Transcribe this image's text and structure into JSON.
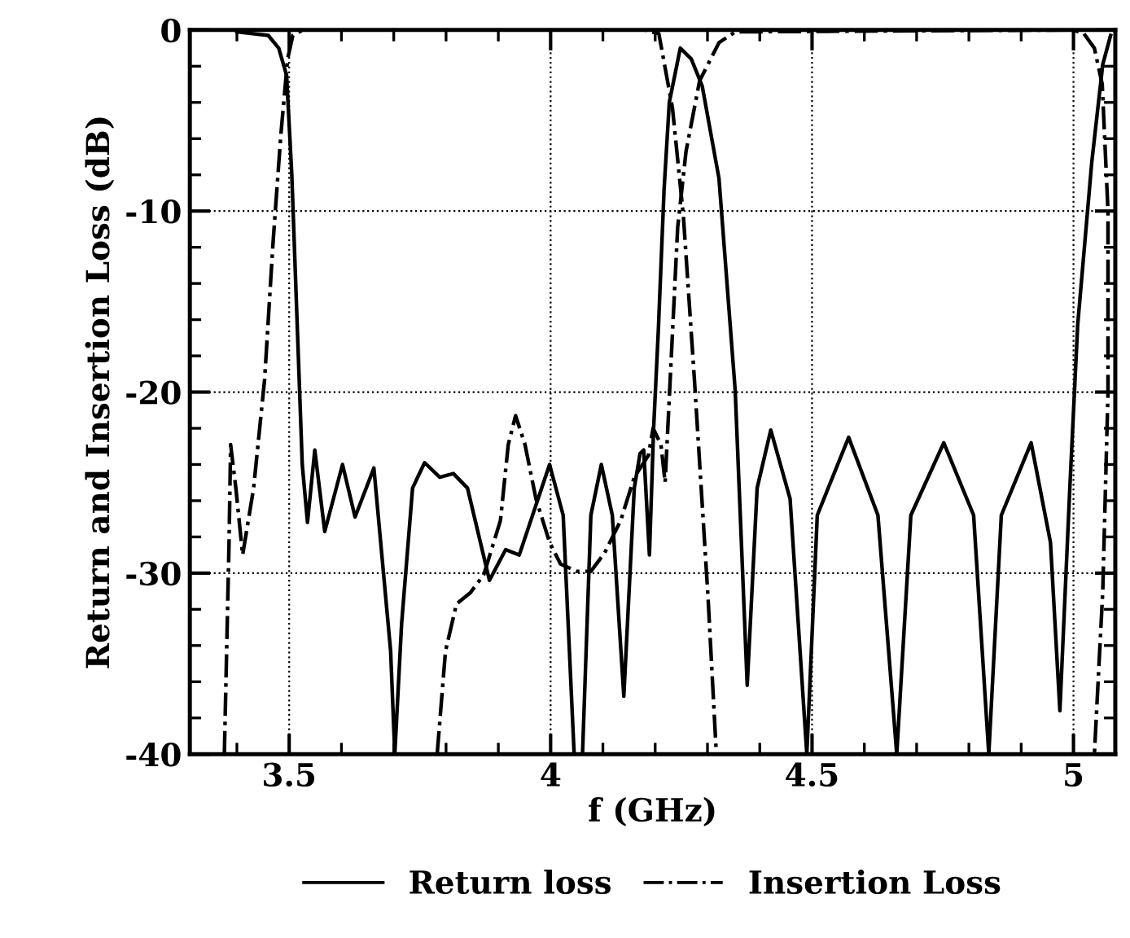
{
  "chart_data": {
    "type": "line",
    "xlabel": "f (GHz)",
    "ylabel": "Return and Insertion Loss (dB)",
    "xlim": [
      3.31,
      5.08
    ],
    "ylim": [
      -40,
      0
    ],
    "xticks": [
      3.5,
      4,
      4.5,
      5
    ],
    "yticks": [
      0,
      -10,
      -20,
      -30,
      -40
    ],
    "grid": true,
    "legend": "bottom",
    "marker": "none",
    "series": [
      {
        "name": "Return loss",
        "color": "#000000",
        "line_style": "solid",
        "x": [
          3.4,
          3.46,
          3.48,
          3.495,
          3.505,
          3.515,
          3.525,
          3.535,
          3.549,
          3.568,
          3.602,
          3.626,
          3.662,
          3.694,
          3.702,
          3.715,
          3.736,
          3.759,
          3.788,
          3.814,
          3.841,
          3.883,
          3.914,
          3.94,
          3.998,
          4.024,
          4.045,
          4.061,
          4.077,
          4.097,
          4.118,
          4.14,
          4.16,
          4.171,
          4.178,
          4.189,
          4.197,
          4.206,
          4.217,
          4.227,
          4.248,
          4.269,
          4.29,
          4.322,
          4.353,
          4.376,
          4.395,
          4.421,
          4.458,
          4.49,
          4.51,
          4.57,
          4.626,
          4.662,
          4.689,
          4.752,
          4.809,
          4.838,
          4.862,
          4.919,
          4.956,
          4.974,
          4.993,
          5.008,
          5.035,
          5.056,
          5.071
        ],
        "values": [
          -0.1,
          -0.3,
          -1,
          -2.5,
          -8,
          -16,
          -24,
          -27.2,
          -23.2,
          -27.7,
          -24.0,
          -26.9,
          -24.2,
          -34.3,
          -40,
          -32.8,
          -25.3,
          -23.9,
          -24.7,
          -24.5,
          -25.3,
          -30.4,
          -28.7,
          -29.0,
          -24.0,
          -26.8,
          -40,
          -40,
          -26.8,
          -24.0,
          -26.8,
          -36.8,
          -25.3,
          -23.4,
          -23.2,
          -29.0,
          -22.0,
          -16.6,
          -8.8,
          -4.0,
          -1.0,
          -1.6,
          -3.1,
          -8.2,
          -19.9,
          -36.2,
          -25.3,
          -22.1,
          -25.9,
          -40,
          -26.8,
          -22.5,
          -26.8,
          -40,
          -26.8,
          -22.8,
          -26.8,
          -40,
          -26.8,
          -22.8,
          -28.3,
          -37.6,
          -25.3,
          -16.3,
          -7.3,
          -1.9,
          -0.3
        ]
      },
      {
        "name": "Insertion Loss",
        "color": "#000000",
        "line_style": "dashdot",
        "x": [
          3.376,
          3.385,
          3.388,
          3.398,
          3.411,
          3.432,
          3.453,
          3.469,
          3.484,
          3.497,
          3.507,
          3.526,
          4.18,
          4.207,
          4.233,
          4.254,
          4.275,
          4.301,
          4.317
        ],
        "values": [
          -40,
          -28.3,
          -22.9,
          -25.3,
          -29.0,
          -25.3,
          -19.3,
          -11.8,
          -5.8,
          -1.6,
          -0.3,
          0,
          0,
          -0.2,
          -4.3,
          -10.3,
          -19.3,
          -31.3,
          -40
        ]
      },
      {
        "color": "#000000",
        "line_style": "dashdot",
        "x": [
          3.783,
          3.799,
          3.82,
          3.846,
          3.872,
          3.904,
          3.919,
          3.933,
          3.951,
          3.972,
          3.998,
          4.019,
          4.05,
          4.077,
          4.103,
          4.134,
          4.16,
          4.187,
          4.196,
          4.211,
          4.219,
          4.243,
          4.259,
          4.285,
          4.322,
          4.353,
          5.0,
          5.02,
          5.04,
          5.055,
          5.066,
          5.066,
          5.056,
          5.04
        ],
        "values": [
          -40,
          -34.3,
          -31.7,
          -31.1,
          -30.1,
          -27.1,
          -22.9,
          -21.3,
          -22.9,
          -25.9,
          -28.3,
          -29.5,
          -29.9,
          -29.9,
          -28.9,
          -27.1,
          -24.7,
          -23.5,
          -22.0,
          -22.9,
          -25.0,
          -10.9,
          -6.7,
          -2.8,
          -0.7,
          -0.1,
          0,
          -0.2,
          -1,
          -3,
          -10,
          -20,
          -31,
          -40
        ]
      }
    ]
  }
}
